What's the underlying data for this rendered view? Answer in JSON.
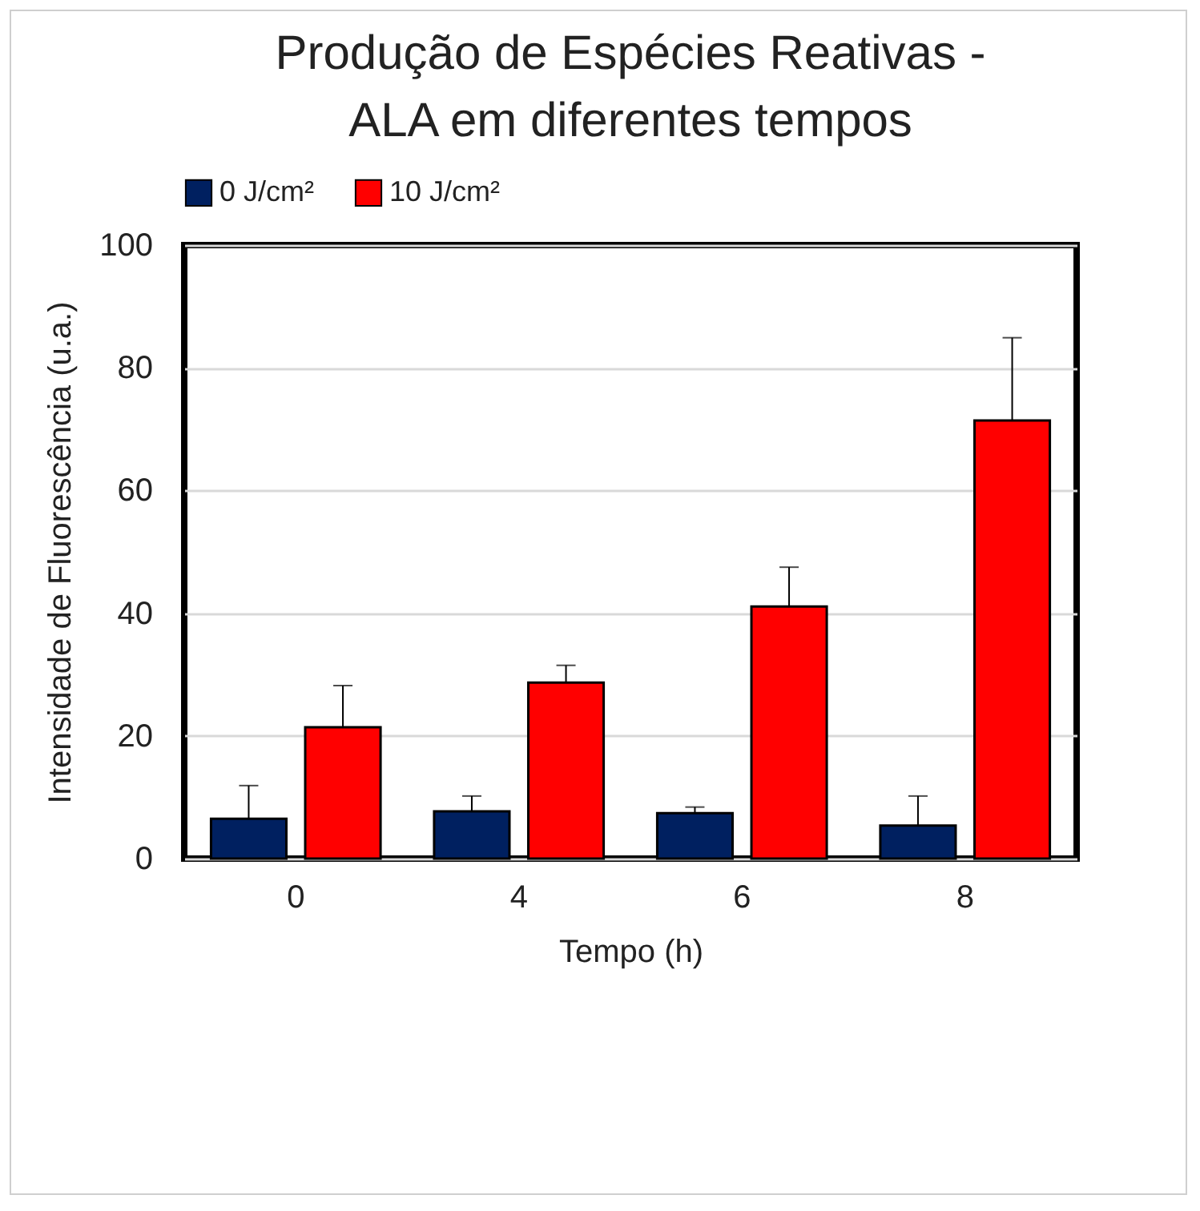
{
  "chart_data": {
    "type": "bar",
    "title": [
      "Produção de Espécies Reativas -",
      "ALA em diferentes tempos"
    ],
    "xlabel": "Tempo (h)",
    "ylabel": "Intensidade de Fluorescência (u.a.)",
    "categories": [
      "0",
      "4",
      "6",
      "8"
    ],
    "series": [
      {
        "name": "0 J/cm²",
        "color": "#002060",
        "values": [
          6.5,
          7.7,
          7.4,
          5.4
        ],
        "errors": [
          [
            6.5,
            11.9
          ],
          [
            7.7,
            10.2
          ],
          [
            7.4,
            8.4
          ],
          [
            5.4,
            10.2
          ]
        ]
      },
      {
        "name": "10 J/cm²",
        "color": "#ff0000",
        "values": [
          21.4,
          28.7,
          41.1,
          71.4
        ],
        "errors": [
          [
            21.4,
            28.2
          ],
          [
            28.7,
            31.5
          ],
          [
            41.1,
            47.5
          ],
          [
            71.4,
            84.9
          ]
        ]
      }
    ],
    "ylim": [
      0,
      100
    ],
    "yticks": [
      0,
      20,
      40,
      60,
      80,
      100
    ],
    "grid": "y",
    "legend": "top"
  }
}
